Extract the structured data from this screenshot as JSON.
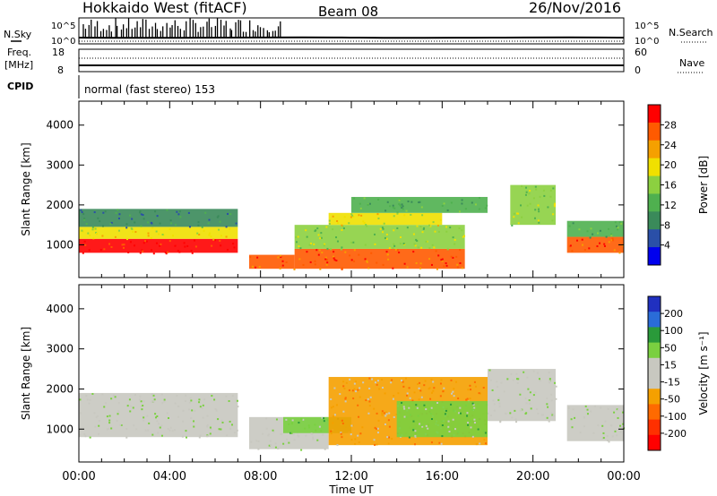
{
  "header": {
    "station": "Hokkaido West (fitACF)",
    "beam": "Beam 08",
    "date": "26/Nov/2016"
  },
  "strip": {
    "nsky_label": "N.Sky",
    "nsky_top": "10^5",
    "nsky_bottom": "10^0",
    "nsearch_label": "N.Search",
    "nsearch_top": "10^5",
    "nsearch_bottom": "10^0",
    "freq_label": "Freq.",
    "freq_unit": "[MHz]",
    "freq_top": "18",
    "freq_bottom": "8",
    "nave_label": "Nave",
    "nave_top": "60",
    "nave_bottom": "0",
    "cpid_label": "CPID",
    "cpid_text": "normal (fast stereo) 153"
  },
  "colors": {
    "power": [
      "#0000ee",
      "#2a4fa8",
      "#3a8a5a",
      "#4fb04f",
      "#8cd040",
      "#f0e000",
      "#f5a000",
      "#ff5a00",
      "#ff0000"
    ],
    "velocity": [
      "#2030c0",
      "#2a6cd8",
      "#2a9a3a",
      "#7ad040",
      "#c8c8c0",
      "#c8c8c0",
      "#f5a000",
      "#ff6a00",
      "#ff3000",
      "#ff0000"
    ]
  },
  "chart_data": [
    {
      "type": "heatmap",
      "panel": "power",
      "ylabel": "Slant Range [km]",
      "yticks": [
        "1000",
        "2000",
        "3000",
        "4000"
      ],
      "ylim": [
        180,
        4600
      ],
      "xlim": [
        0,
        24
      ],
      "colorbar_label": "Power [dB]",
      "colorbar_ticks": [
        "4",
        "8",
        "12",
        "16",
        "20",
        "24",
        "28"
      ],
      "regions": [
        {
          "x0": 0,
          "x1": 7.0,
          "y0": 800,
          "y1": 1150,
          "level": 8
        },
        {
          "x0": 0,
          "x1": 7.0,
          "y0": 1150,
          "y1": 1450,
          "level": 5
        },
        {
          "x0": 0,
          "x1": 7.0,
          "y0": 1450,
          "y1": 1900,
          "level": 2
        },
        {
          "x0": 7.5,
          "x1": 9.5,
          "y0": 400,
          "y1": 750,
          "level": 7
        },
        {
          "x0": 9.5,
          "x1": 17,
          "y0": 400,
          "y1": 900,
          "level": 7
        },
        {
          "x0": 9.5,
          "x1": 17,
          "y0": 900,
          "y1": 1500,
          "level": 4
        },
        {
          "x0": 11,
          "x1": 16,
          "y0": 1500,
          "y1": 1800,
          "level": 5
        },
        {
          "x0": 12,
          "x1": 18,
          "y0": 1800,
          "y1": 2200,
          "level": 3
        },
        {
          "x0": 19,
          "x1": 21,
          "y0": 1500,
          "y1": 2500,
          "level": 4
        },
        {
          "x0": 21.5,
          "x1": 24,
          "y0": 800,
          "y1": 1200,
          "level": 7
        },
        {
          "x0": 21.5,
          "x1": 24,
          "y0": 1200,
          "y1": 1600,
          "level": 3
        }
      ]
    },
    {
      "type": "heatmap",
      "panel": "velocity",
      "ylabel": "Slant Range [km]",
      "yticks": [
        "1000",
        "2000",
        "3000",
        "4000"
      ],
      "ylim": [
        180,
        4600
      ],
      "xlim": [
        0,
        24
      ],
      "xlabel": "Time UT",
      "xticks": [
        "00:00",
        "04:00",
        "08:00",
        "12:00",
        "16:00",
        "20:00",
        "00:00"
      ],
      "colorbar_label": "Velocity [m s⁻¹]",
      "colorbar_ticks": [
        "200",
        "100",
        "50",
        "15",
        "-15",
        "-50",
        "-100",
        "-200"
      ],
      "regions": [
        {
          "x0": 0,
          "x1": 7.0,
          "y0": 800,
          "y1": 1900,
          "level": 4
        },
        {
          "x0": 7.5,
          "x1": 11,
          "y0": 500,
          "y1": 1300,
          "level": 4
        },
        {
          "x0": 9,
          "x1": 12,
          "y0": 900,
          "y1": 1300,
          "level": 3
        },
        {
          "x0": 11,
          "x1": 18,
          "y0": 600,
          "y1": 2300,
          "level": 6
        },
        {
          "x0": 14,
          "x1": 18,
          "y0": 800,
          "y1": 1700,
          "level": 3
        },
        {
          "x0": 18,
          "x1": 21,
          "y0": 1200,
          "y1": 2500,
          "level": 4
        },
        {
          "x0": 21.5,
          "x1": 24,
          "y0": 700,
          "y1": 1600,
          "level": 4
        }
      ]
    }
  ]
}
